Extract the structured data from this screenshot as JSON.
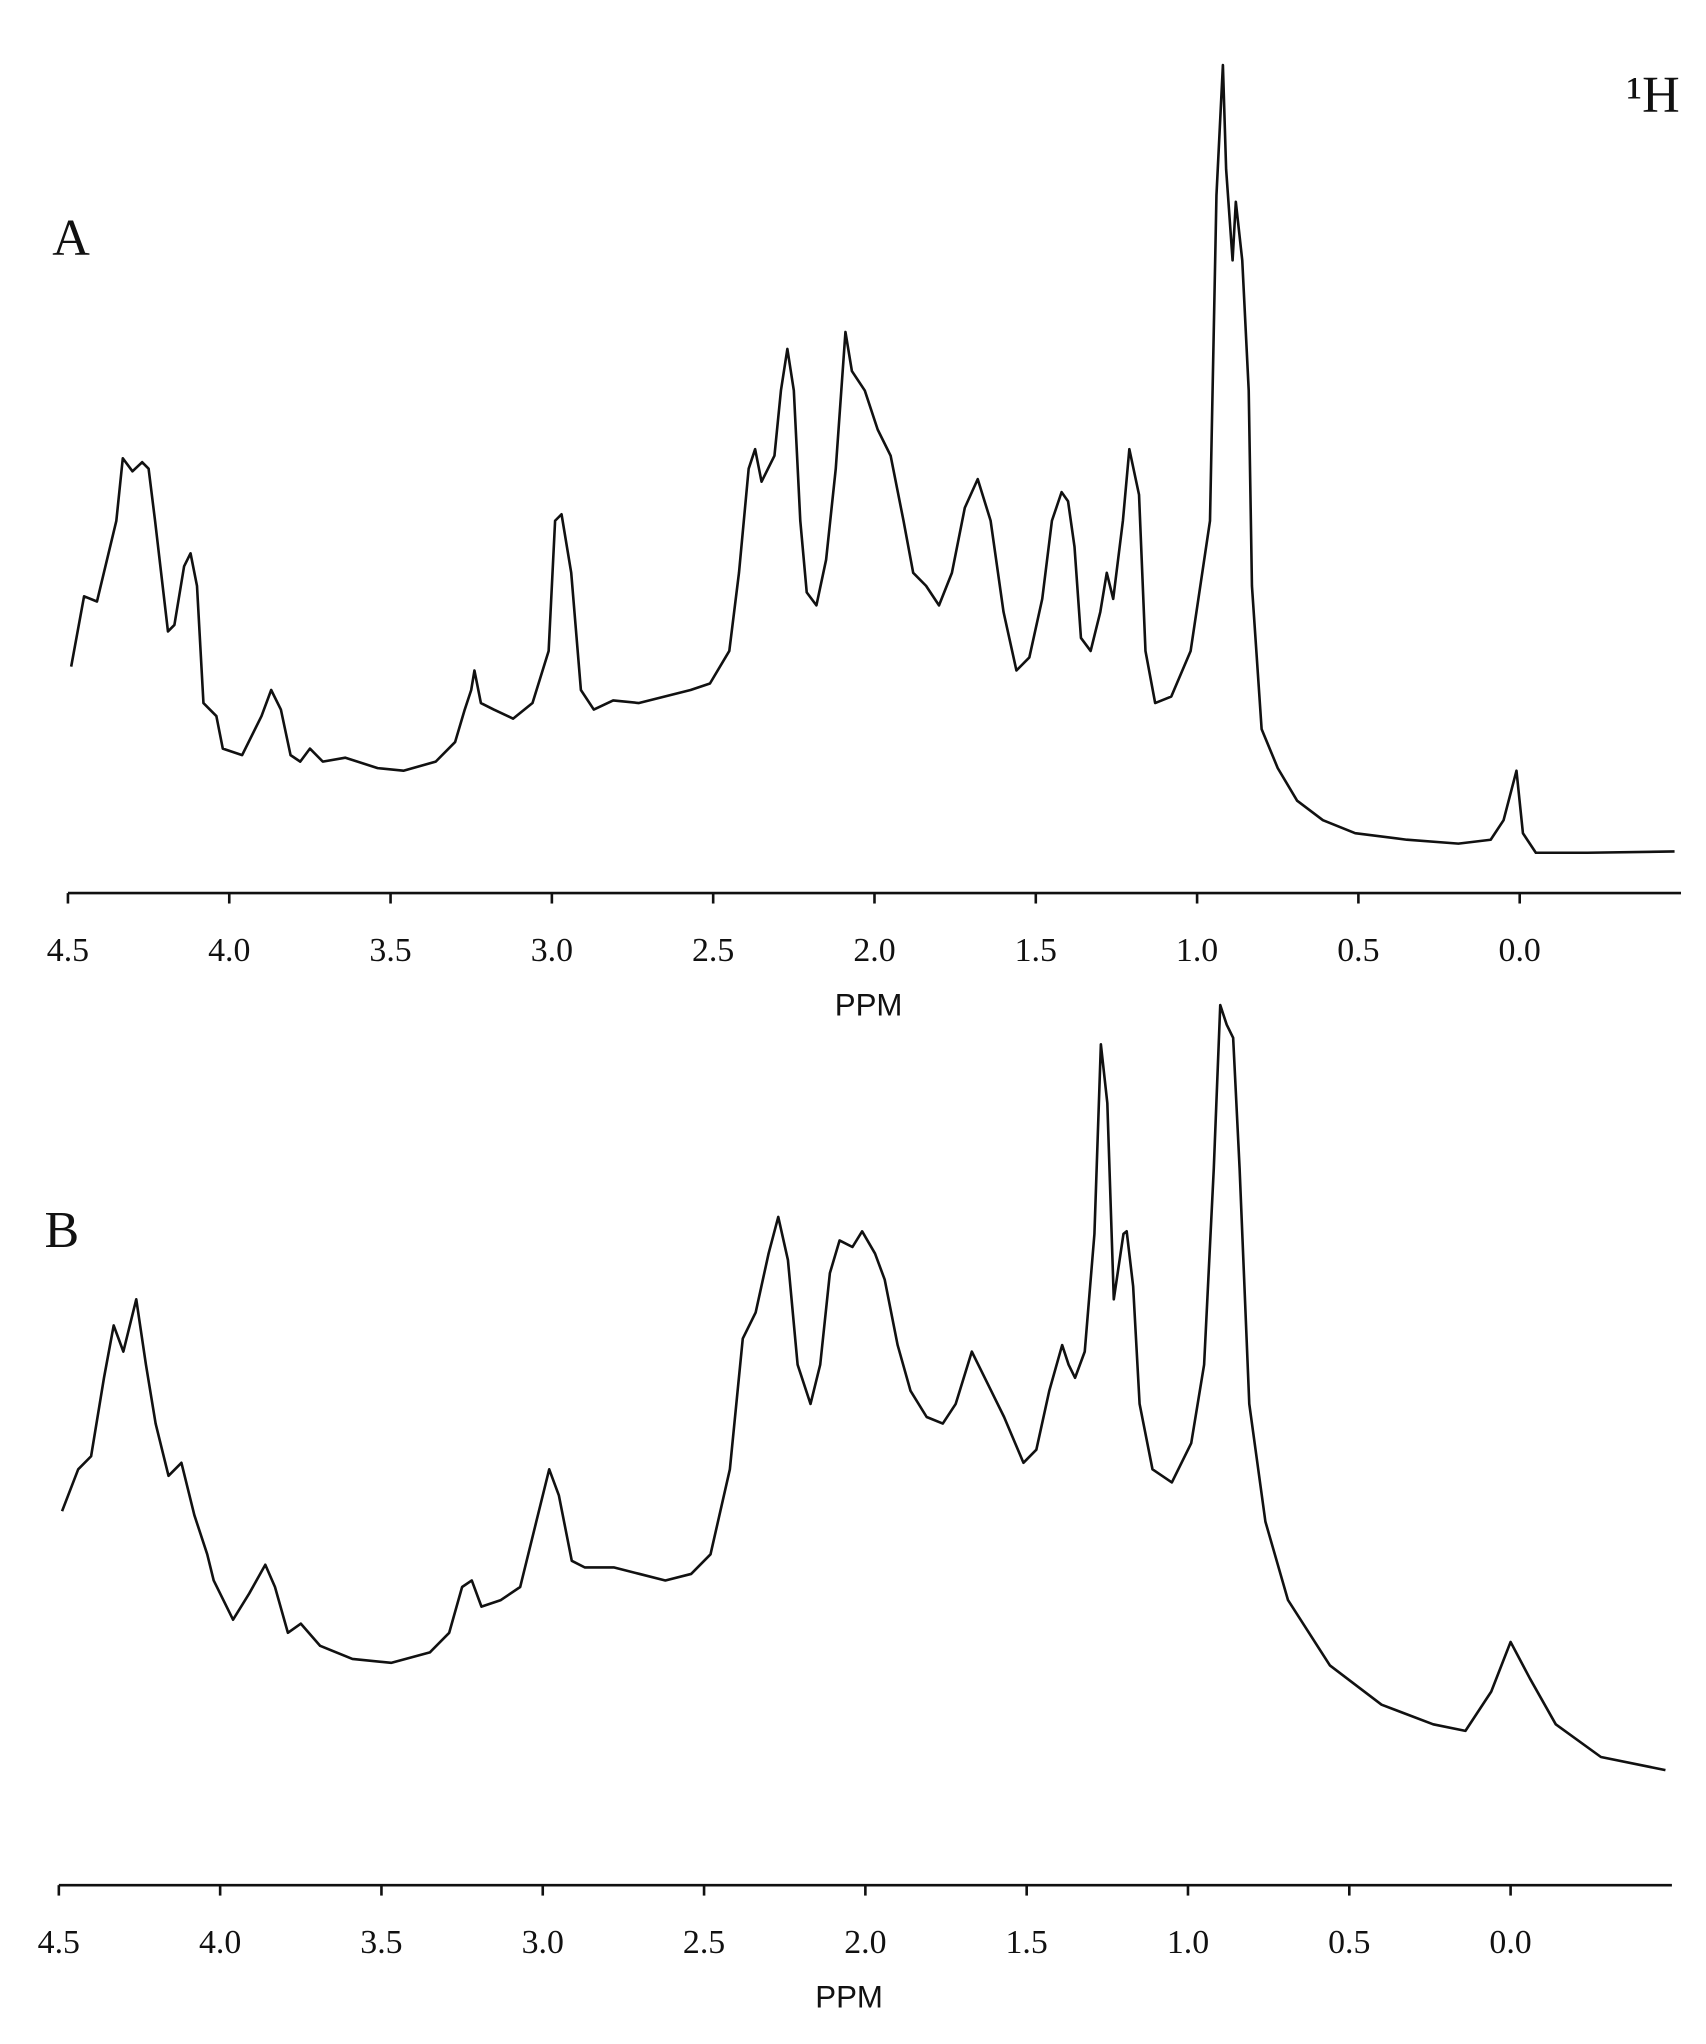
{
  "chart_data": [
    {
      "type": "line",
      "panel_label": "A",
      "annotation": "¹H",
      "xlabel": "PPM",
      "xlim": [
        4.5,
        -0.5
      ],
      "xticks": [
        4.5,
        {
          "value": 4,
          "label": "4.0"
        },
        3.5,
        {
          "value": 3,
          "label": "3.0"
        },
        2.5,
        {
          "value": 2,
          "label": "2.0"
        },
        1.5,
        {
          "value": 1,
          "label": "1.0"
        },
        0.5,
        {
          "value": 0,
          "label": "0.0"
        }
      ],
      "x": [
        4.49,
        4.45,
        4.41,
        4.35,
        4.33,
        4.3,
        4.27,
        4.25,
        4.23,
        4.19,
        4.17,
        4.14,
        4.12,
        4.1,
        4.08,
        4.04,
        4.02,
        3.96,
        3.9,
        3.87,
        3.84,
        3.81,
        3.78,
        3.75,
        3.71,
        3.64,
        3.54,
        3.46,
        3.36,
        3.3,
        3.27,
        3.25,
        3.24,
        3.22,
        3.18,
        3.12,
        3.06,
        3.01,
        2.99,
        2.97,
        2.94,
        2.91,
        2.87,
        2.81,
        2.73,
        2.65,
        2.57,
        2.51,
        2.45,
        2.42,
        2.39,
        2.37,
        2.35,
        2.31,
        2.29,
        2.27,
        2.25,
        2.23,
        2.21,
        2.18,
        2.15,
        2.12,
        2.09,
        2.07,
        2.03,
        1.99,
        1.95,
        1.91,
        1.88,
        1.84,
        1.8,
        1.76,
        1.72,
        1.68,
        1.64,
        1.6,
        1.56,
        1.52,
        1.48,
        1.45,
        1.42,
        1.4,
        1.38,
        1.36,
        1.33,
        1.3,
        1.28,
        1.26,
        1.23,
        1.21,
        1.18,
        1.16,
        1.13,
        1.08,
        1.02,
        0.96,
        0.94,
        0.92,
        0.91,
        0.89,
        0.88,
        0.86,
        0.84,
        0.83,
        0.8,
        0.75,
        0.69,
        0.61,
        0.51,
        0.35,
        0.19,
        0.09,
        0.05,
        0.01,
        -0.01,
        -0.05,
        -0.21,
        -0.48
      ],
      "series": [
        {
          "color": "#111111",
          "values": [
            174,
            228,
            224,
            286,
            334,
            324,
            331,
            326,
            286,
            201,
            206,
            251,
            261,
            236,
            146,
            136,
            111,
            106,
            136,
            156,
            141,
            106,
            101,
            111,
            101,
            104,
            96,
            94,
            101,
            116,
            141,
            156,
            171,
            146,
            141,
            134,
            146,
            186,
            286,
            291,
            246,
            156,
            141,
            148,
            146,
            151,
            156,
            161,
            186,
            246,
            326,
            341,
            316,
            336,
            386,
            418,
            386,
            286,
            231,
            221,
            256,
            326,
            431,
            401,
            386,
            356,
            336,
            286,
            246,
            236,
            221,
            246,
            296,
            318,
            286,
            216,
            171,
            181,
            226,
            286,
            308,
            301,
            266,
            196,
            186,
            216,
            246,
            226,
            286,
            341,
            306,
            186,
            146,
            151,
            186,
            286,
            536,
            636,
            556,
            486,
            531,
            486,
            386,
            236,
            126,
            96,
            71,
            56,
            46,
            41,
            38,
            41,
            56,
            94,
            46,
            31,
            31,
            32
          ]
        }
      ]
    },
    {
      "type": "line",
      "panel_label": "B",
      "xlabel": "PPM",
      "xlim": [
        4.5,
        -0.5
      ],
      "xticks": [
        4.5,
        {
          "value": 4,
          "label": "4.0"
        },
        3.5,
        {
          "value": 3,
          "label": "3.0"
        },
        2.5,
        {
          "value": 2,
          "label": "2.0"
        },
        1.5,
        {
          "value": 1,
          "label": "1.0"
        },
        0.5,
        {
          "value": 0,
          "label": "0.0"
        }
      ],
      "x": [
        4.49,
        4.44,
        4.4,
        4.36,
        4.33,
        4.3,
        4.26,
        4.23,
        4.2,
        4.16,
        4.12,
        4.08,
        4.04,
        4.02,
        3.96,
        3.91,
        3.86,
        3.83,
        3.79,
        3.75,
        3.69,
        3.59,
        3.47,
        3.35,
        3.29,
        3.25,
        3.22,
        3.19,
        3.13,
        3.07,
        3.02,
        2.98,
        2.95,
        2.91,
        2.87,
        2.78,
        2.7,
        2.62,
        2.54,
        2.48,
        2.42,
        2.38,
        2.34,
        2.3,
        2.27,
        2.24,
        2.21,
        2.17,
        2.14,
        2.11,
        2.08,
        2.04,
        2.01,
        1.97,
        1.94,
        1.9,
        1.86,
        1.81,
        1.76,
        1.72,
        1.67,
        1.65,
        1.61,
        1.57,
        1.51,
        1.47,
        1.43,
        1.39,
        1.37,
        1.35,
        1.32,
        1.29,
        1.27,
        1.25,
        1.23,
        1.2,
        1.19,
        1.17,
        1.15,
        1.11,
        1.05,
        0.99,
        0.95,
        0.92,
        0.9,
        0.88,
        0.86,
        0.84,
        0.81,
        0.76,
        0.69,
        0.56,
        0.4,
        0.24,
        0.14,
        0.06,
        0.0,
        -0.06,
        -0.14,
        -0.28,
        -0.48
      ],
      "series": [
        {
          "color": "#111111",
          "values": [
            286,
            318,
            328,
            388,
            428,
            408,
            448,
            398,
            353,
            313,
            323,
            283,
            253,
            233,
            203,
            223,
            245,
            228,
            193,
            200,
            183,
            173,
            170,
            178,
            193,
            228,
            233,
            213,
            218,
            228,
            278,
            318,
            298,
            248,
            243,
            243,
            238,
            233,
            238,
            253,
            318,
            418,
            438,
            483,
            511,
            478,
            398,
            368,
            398,
            468,
            493,
            488,
            500,
            483,
            463,
            413,
            378,
            358,
            353,
            368,
            408,
            398,
            378,
            358,
            323,
            333,
            378,
            413,
            398,
            388,
            408,
            498,
            643,
            598,
            448,
            498,
            500,
            458,
            368,
            318,
            308,
            338,
            398,
            548,
            673,
            658,
            648,
            548,
            368,
            278,
            218,
            168,
            138,
            123,
            118,
            148,
            186,
            158,
            123,
            98,
            88
          ]
        }
      ]
    }
  ]
}
